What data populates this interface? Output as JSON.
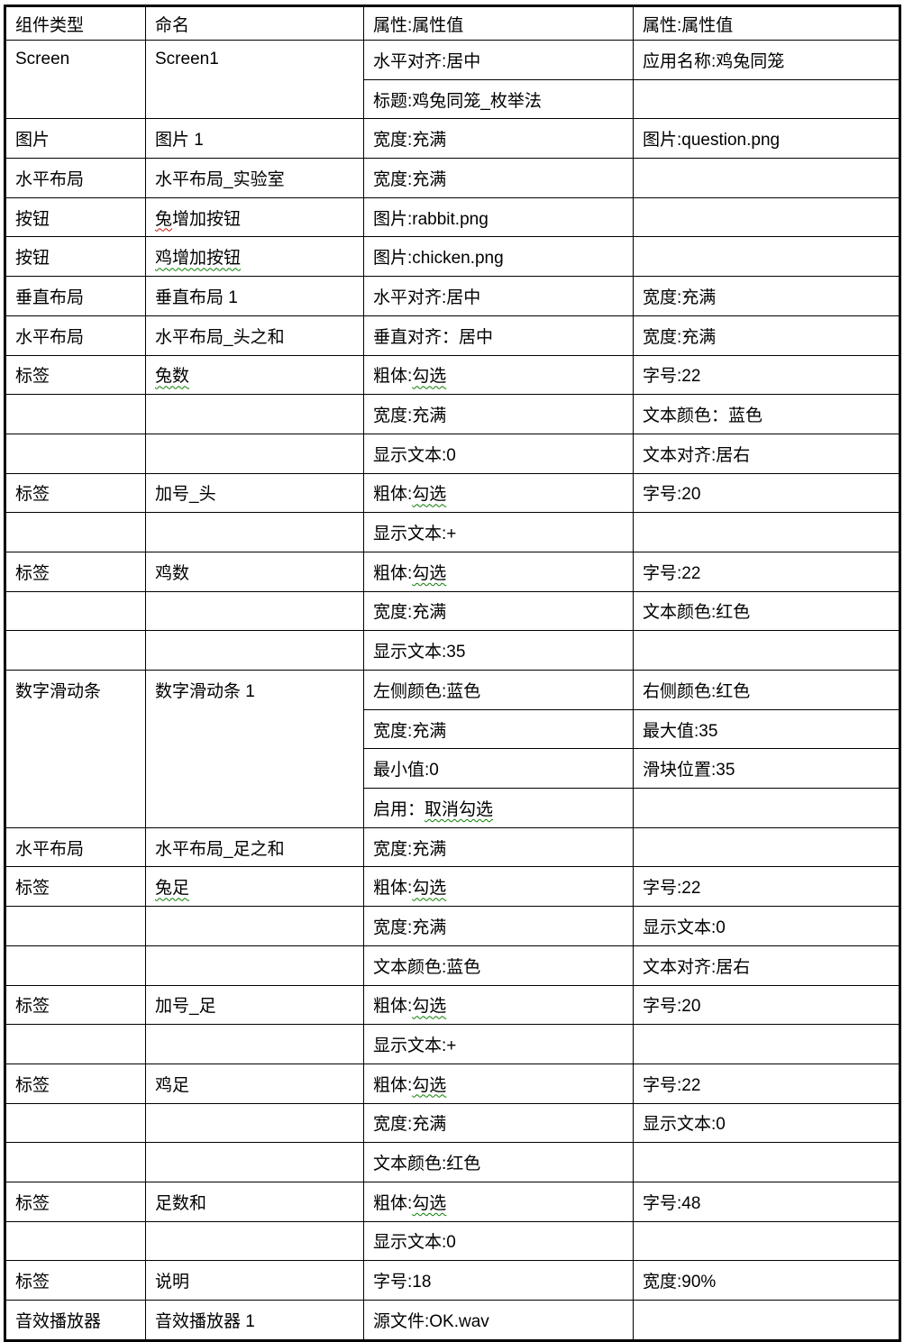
{
  "page": {
    "background": "#ffffff",
    "border_color": "#000000",
    "squiggle_green": "#0a7d00",
    "squiggle_red": "#cc1100"
  },
  "table": {
    "header": [
      "组件类型",
      "命名",
      "属性:属性值",
      "属性:属性值"
    ],
    "rows": [
      {
        "cells": [
          {
            "text": "Screen",
            "rowspan": 2
          },
          {
            "text": "Screen1",
            "rowspan": 2
          },
          {
            "text": "水平对齐:居中"
          },
          {
            "text": "应用名称:鸡兔同笼"
          }
        ]
      },
      {
        "cells": [
          null,
          null,
          {
            "text": "标题:鸡兔同笼_枚举法"
          },
          {
            "text": ""
          }
        ]
      },
      {
        "cells": [
          {
            "text": "图片"
          },
          {
            "text": "图片 1"
          },
          {
            "text": "宽度:充满"
          },
          {
            "text": "图片:question.png"
          }
        ]
      },
      {
        "cells": [
          {
            "text": "水平布局"
          },
          {
            "text": "水平布局_实验室"
          },
          {
            "text": "宽度:充满"
          },
          {
            "text": ""
          }
        ]
      },
      {
        "cells": [
          {
            "text": "按钮"
          },
          {
            "segs": [
              {
                "t": "兔",
                "u": "red"
              },
              {
                "t": "增加按钮"
              }
            ]
          },
          {
            "text": "图片:rabbit.png"
          },
          {
            "text": ""
          }
        ]
      },
      {
        "cells": [
          {
            "text": "按钮"
          },
          {
            "segs": [
              {
                "t": "鸡增加按钮",
                "u": "green"
              }
            ]
          },
          {
            "text": "图片:chicken.png"
          },
          {
            "text": ""
          }
        ]
      },
      {
        "cells": [
          {
            "text": "垂直布局"
          },
          {
            "text": "垂直布局 1"
          },
          {
            "text": "水平对齐:居中"
          },
          {
            "text": "宽度:充满"
          }
        ]
      },
      {
        "cells": [
          {
            "text": "水平布局"
          },
          {
            "text": "水平布局_头之和"
          },
          {
            "text": "垂直对齐：居中"
          },
          {
            "text": "宽度:充满"
          }
        ]
      },
      {
        "cells": [
          {
            "text": "标签"
          },
          {
            "segs": [
              {
                "t": "兔数",
                "u": "green"
              }
            ]
          },
          {
            "segs": [
              {
                "t": "粗体:"
              },
              {
                "t": "勾选",
                "u": "green"
              }
            ]
          },
          {
            "text": "字号:22"
          }
        ]
      },
      {
        "cells": [
          {
            "text": ""
          },
          {
            "text": ""
          },
          {
            "text": "宽度:充满"
          },
          {
            "text": "文本颜色：蓝色"
          }
        ]
      },
      {
        "cells": [
          {
            "text": ""
          },
          {
            "text": ""
          },
          {
            "text": "显示文本:0"
          },
          {
            "text": "文本对齐:居右"
          }
        ]
      },
      {
        "cells": [
          {
            "text": "标签"
          },
          {
            "text": "加号_头"
          },
          {
            "segs": [
              {
                "t": "粗体:"
              },
              {
                "t": "勾选",
                "u": "green"
              }
            ]
          },
          {
            "text": "字号:20"
          }
        ]
      },
      {
        "cells": [
          {
            "text": ""
          },
          {
            "text": ""
          },
          {
            "text": "显示文本:+"
          },
          {
            "text": ""
          }
        ]
      },
      {
        "cells": [
          {
            "text": "标签"
          },
          {
            "text": "鸡数"
          },
          {
            "segs": [
              {
                "t": "粗体:"
              },
              {
                "t": "勾选",
                "u": "green"
              }
            ]
          },
          {
            "text": "字号:22"
          }
        ]
      },
      {
        "cells": [
          {
            "text": ""
          },
          {
            "text": ""
          },
          {
            "text": "宽度:充满"
          },
          {
            "text": "文本颜色:红色"
          }
        ]
      },
      {
        "cells": [
          {
            "text": ""
          },
          {
            "text": ""
          },
          {
            "text": "显示文本:35"
          },
          {
            "text": ""
          }
        ]
      },
      {
        "cells": [
          {
            "text": "数字滑动条",
            "rowspan": 4
          },
          {
            "text": "数字滑动条 1",
            "rowspan": 4
          },
          {
            "text": "左侧颜色:蓝色"
          },
          {
            "text": "右侧颜色:红色"
          }
        ]
      },
      {
        "cells": [
          null,
          null,
          {
            "text": "宽度:充满"
          },
          {
            "text": "最大值:35"
          }
        ]
      },
      {
        "cells": [
          null,
          null,
          {
            "text": "最小值:0"
          },
          {
            "text": "滑块位置:35"
          }
        ]
      },
      {
        "cells": [
          null,
          null,
          {
            "segs": [
              {
                "t": "启用："
              },
              {
                "t": "取消勾选",
                "u": "green"
              }
            ]
          },
          {
            "text": ""
          }
        ]
      },
      {
        "cells": [
          {
            "text": "水平布局"
          },
          {
            "text": "水平布局_足之和"
          },
          {
            "text": "宽度:充满"
          },
          {
            "text": ""
          }
        ]
      },
      {
        "cells": [
          {
            "text": "标签"
          },
          {
            "segs": [
              {
                "t": "兔足",
                "u": "green"
              }
            ]
          },
          {
            "segs": [
              {
                "t": "粗体:"
              },
              {
                "t": "勾选",
                "u": "green"
              }
            ]
          },
          {
            "text": "字号:22"
          }
        ]
      },
      {
        "cells": [
          {
            "text": ""
          },
          {
            "text": ""
          },
          {
            "text": "宽度:充满"
          },
          {
            "text": "显示文本:0"
          }
        ]
      },
      {
        "cells": [
          {
            "text": ""
          },
          {
            "text": ""
          },
          {
            "text": "文本颜色:蓝色"
          },
          {
            "text": "文本对齐:居右"
          }
        ]
      },
      {
        "cells": [
          {
            "text": "标签"
          },
          {
            "text": "加号_足"
          },
          {
            "segs": [
              {
                "t": "粗体:"
              },
              {
                "t": "勾选",
                "u": "green"
              }
            ]
          },
          {
            "text": "字号:20"
          }
        ]
      },
      {
        "cells": [
          {
            "text": ""
          },
          {
            "text": ""
          },
          {
            "text": "显示文本:+"
          },
          {
            "text": ""
          }
        ]
      },
      {
        "cells": [
          {
            "text": "标签"
          },
          {
            "text": "鸡足"
          },
          {
            "segs": [
              {
                "t": "粗体:"
              },
              {
                "t": "勾选",
                "u": "green"
              }
            ]
          },
          {
            "text": "字号:22"
          }
        ]
      },
      {
        "cells": [
          {
            "text": ""
          },
          {
            "text": ""
          },
          {
            "text": "宽度:充满"
          },
          {
            "text": "显示文本:0"
          }
        ]
      },
      {
        "cells": [
          {
            "text": ""
          },
          {
            "text": ""
          },
          {
            "text": "文本颜色:红色"
          },
          {
            "text": ""
          }
        ]
      },
      {
        "cells": [
          {
            "text": "标签"
          },
          {
            "text": "足数和"
          },
          {
            "segs": [
              {
                "t": "粗体:"
              },
              {
                "t": "勾选",
                "u": "green"
              }
            ]
          },
          {
            "text": "字号:48"
          }
        ]
      },
      {
        "cells": [
          {
            "text": ""
          },
          {
            "text": ""
          },
          {
            "text": "显示文本:0"
          },
          {
            "text": ""
          }
        ]
      },
      {
        "cells": [
          {
            "text": "标签"
          },
          {
            "text": "说明"
          },
          {
            "text": "字号:18"
          },
          {
            "text": "宽度:90%"
          }
        ]
      },
      {
        "cells": [
          {
            "text": "音效播放器"
          },
          {
            "text": "音效播放器 1"
          },
          {
            "text": "源文件:OK.wav"
          },
          {
            "text": ""
          }
        ]
      }
    ]
  }
}
